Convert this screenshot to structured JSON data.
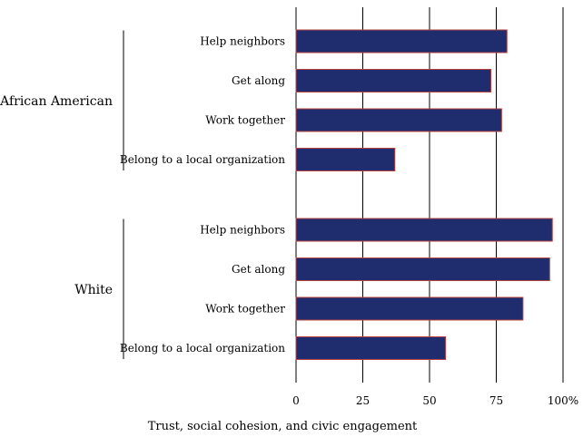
{
  "chart_data": {
    "type": "bar",
    "orientation": "horizontal",
    "title": "",
    "xlabel": "Trust, social cohesion, and civic engagement",
    "ylabel": "",
    "xlim": [
      0,
      100
    ],
    "x_ticks": [
      0,
      25,
      50,
      75,
      100
    ],
    "x_tick_labels": [
      "0",
      "25",
      "50",
      "75",
      "100%"
    ],
    "grid": "vertical",
    "bar_color": "#1f2d6e",
    "bar_edge_color": "#b5443f",
    "groups": [
      {
        "name": "African American",
        "categories": [
          "Help neighbors",
          "Get along",
          "Work together",
          "Belong to a local organization"
        ],
        "values": [
          79,
          73,
          77,
          37
        ]
      },
      {
        "name": "White",
        "categories": [
          "Help neighbors",
          "Get along",
          "Work together",
          "Belong to a local organization"
        ],
        "values": [
          96,
          95,
          85,
          56
        ]
      }
    ]
  }
}
